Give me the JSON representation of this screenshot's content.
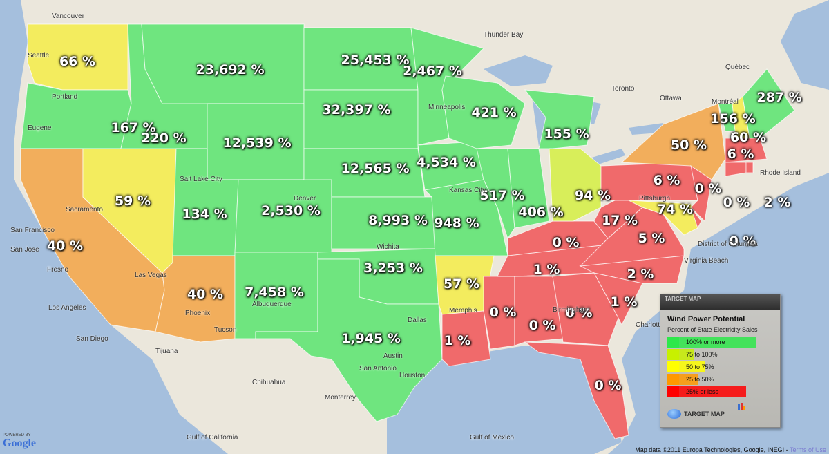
{
  "legend": {
    "header": "TARGET MAP",
    "title": "Wind Power Potential",
    "subtitle": "Percent of State Electricity Sales",
    "categories": [
      {
        "label": "100% or more",
        "color": "#2ee84a"
      },
      {
        "label": "75 to 100%",
        "color": "#c8f000"
      },
      {
        "label": "50 to 75%",
        "color": "#ffff00"
      },
      {
        "label": "25 to 50%",
        "color": "#ff9900"
      },
      {
        "label": "25% or less",
        "color": "#ff0000"
      }
    ],
    "logo": "TARGET MAP"
  },
  "state_fill_colors": [
    "#6fe57f",
    "#d8ee5a",
    "#f3ec5e",
    "#f2ae5c",
    "#f06a6b"
  ],
  "ocean_color": "#a5bfdd",
  "states": [
    {
      "value": "66 %",
      "category": 2
    },
    {
      "value": "167 %",
      "category": 0
    },
    {
      "value": "40 %",
      "category": 3
    },
    {
      "value": "59 %",
      "category": 2
    },
    {
      "value": "220 %",
      "category": 0
    },
    {
      "value": "23,692 %",
      "category": 0
    },
    {
      "value": "12,539 %",
      "category": 0
    },
    {
      "value": "134 %",
      "category": 0
    },
    {
      "value": "40 %",
      "category": 3
    },
    {
      "value": "2,530 %",
      "category": 0
    },
    {
      "value": "7,458 %",
      "category": 0
    },
    {
      "value": "25,453 %",
      "category": 0
    },
    {
      "value": "32,397 %",
      "category": 0
    },
    {
      "value": "12,565 %",
      "category": 0
    },
    {
      "value": "8,993 %",
      "category": 0
    },
    {
      "value": "3,253 %",
      "category": 0
    },
    {
      "value": "1,945 %",
      "category": 0
    },
    {
      "value": "2,467 %",
      "category": 0
    },
    {
      "value": "4,534 %",
      "category": 0
    },
    {
      "value": "948 %",
      "category": 0
    },
    {
      "value": "57 %",
      "category": 2
    },
    {
      "value": "1 %",
      "category": 4
    },
    {
      "value": "0 %",
      "category": 4
    },
    {
      "value": "0 %",
      "category": 4
    },
    {
      "value": "0 %",
      "category": 4
    },
    {
      "value": "0 %",
      "category": 4
    },
    {
      "value": "1 %",
      "category": 4
    },
    {
      "value": "2 %",
      "category": 4
    },
    {
      "value": "1 %",
      "category": 4
    },
    {
      "value": "0 %",
      "category": 4
    },
    {
      "value": "5 %",
      "category": 4
    },
    {
      "value": "17 %",
      "category": 4
    },
    {
      "value": "421 %",
      "category": 0
    },
    {
      "value": "517 %",
      "category": 0
    },
    {
      "value": "406 %",
      "category": 0
    },
    {
      "value": "155 %",
      "category": 0
    },
    {
      "value": "94 %",
      "category": 1
    },
    {
      "value": "6 %",
      "category": 4
    },
    {
      "value": "50 %",
      "category": 3
    },
    {
      "value": "0 %",
      "category": 4
    },
    {
      "value": "74 %",
      "category": 2
    },
    {
      "value": "0 %",
      "category": 4
    },
    {
      "value": "156 %",
      "category": 0
    },
    {
      "value": "60 %",
      "category": 2
    },
    {
      "value": "287 %",
      "category": 0
    },
    {
      "value": "6 %",
      "category": 4
    },
    {
      "value": "0 %",
      "category": 4
    },
    {
      "value": "2 %",
      "category": 4
    }
  ],
  "places": [
    "Vancouver",
    "Seattle",
    "Portland",
    "Eugene",
    "Sacramento",
    "San Francisco",
    "San Jose",
    "Fresno",
    "Los Angeles",
    "San Diego",
    "Las Vegas",
    "Phoenix",
    "Tucson",
    "Salt Lake City",
    "Denver",
    "Albuquerque",
    "Kansas City",
    "Wichita",
    "Dallas",
    "Houston",
    "San Antonio",
    "Austin",
    "Memphis",
    "Minneapolis",
    "Toronto",
    "Montréal",
    "Ottawa",
    "Pittsburgh",
    "Birmingham",
    "Charlotte",
    "Tijuana",
    "Chihuahua",
    "Monterrey",
    "Gulf of California",
    "Gulf of Mexico",
    "Virginia Beach",
    "District of Columbia",
    "Rhode Island",
    "Thunder Bay",
    "Québec"
  ],
  "footer": {
    "attribution": "Map data ©2011 Europa Technologies, Google, INEGI - ",
    "terms": "Terms of Use"
  },
  "powered_by": {
    "label": "POWERED BY",
    "brand": "Google"
  }
}
